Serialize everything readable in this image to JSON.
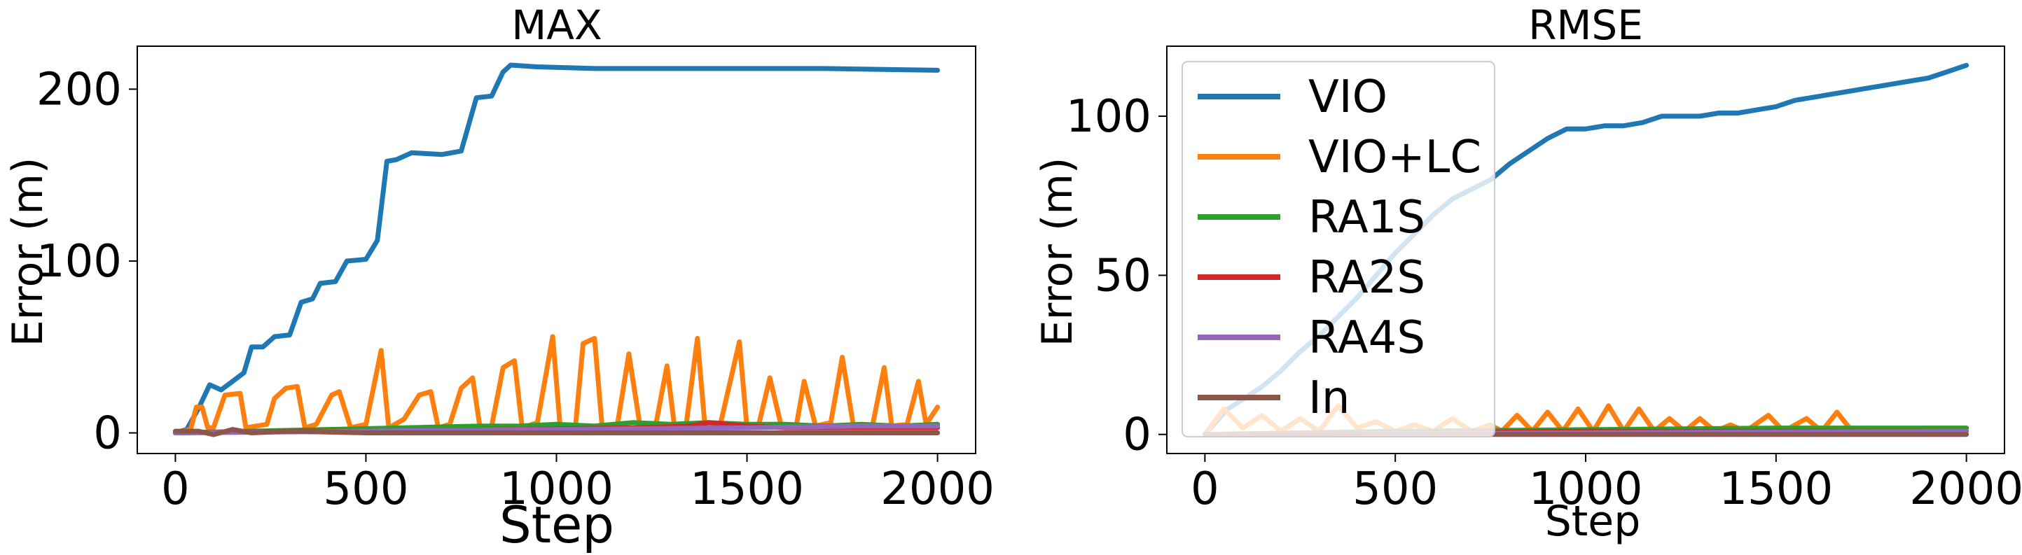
{
  "chart_data": [
    {
      "type": "line",
      "title": "MAX",
      "xlabel": "Step",
      "ylabel": "Error (m)",
      "xlim": [
        -100,
        2100
      ],
      "ylim": [
        -12,
        225
      ],
      "xticks": [
        0,
        500,
        1000,
        1500,
        2000
      ],
      "yticks": [
        0,
        100,
        200
      ],
      "legend": false,
      "series": [
        {
          "name": "VIO",
          "color": "#1f77b4",
          "points": [
            [
              0,
              0
            ],
            [
              30,
              2
            ],
            [
              60,
              14
            ],
            [
              90,
              28
            ],
            [
              120,
              25
            ],
            [
              150,
              30
            ],
            [
              180,
              35
            ],
            [
              200,
              50
            ],
            [
              230,
              50
            ],
            [
              260,
              56
            ],
            [
              300,
              57
            ],
            [
              330,
              76
            ],
            [
              360,
              78
            ],
            [
              380,
              87
            ],
            [
              420,
              88
            ],
            [
              450,
              100
            ],
            [
              500,
              101
            ],
            [
              530,
              112
            ],
            [
              555,
              158
            ],
            [
              580,
              159
            ],
            [
              620,
              163
            ],
            [
              700,
              162
            ],
            [
              750,
              164
            ],
            [
              790,
              195
            ],
            [
              830,
              196
            ],
            [
              860,
              210
            ],
            [
              880,
              214
            ],
            [
              950,
              213
            ],
            [
              1100,
              212
            ],
            [
              1300,
              212
            ],
            [
              1500,
              212
            ],
            [
              1700,
              212
            ],
            [
              2000,
              211
            ]
          ]
        },
        {
          "name": "VIO+LC",
          "color": "#ff7f0e",
          "points": [
            [
              0,
              0
            ],
            [
              40,
              2
            ],
            [
              55,
              15
            ],
            [
              70,
              15
            ],
            [
              85,
              3
            ],
            [
              100,
              3
            ],
            [
              130,
              22
            ],
            [
              170,
              23
            ],
            [
              185,
              3
            ],
            [
              240,
              5
            ],
            [
              260,
              20
            ],
            [
              290,
              26
            ],
            [
              320,
              27
            ],
            [
              340,
              3
            ],
            [
              370,
              5
            ],
            [
              410,
              22
            ],
            [
              430,
              24
            ],
            [
              460,
              3
            ],
            [
              500,
              5
            ],
            [
              540,
              48
            ],
            [
              560,
              3
            ],
            [
              600,
              8
            ],
            [
              640,
              22
            ],
            [
              670,
              24
            ],
            [
              690,
              3
            ],
            [
              720,
              5
            ],
            [
              750,
              26
            ],
            [
              780,
              32
            ],
            [
              800,
              2
            ],
            [
              830,
              4
            ],
            [
              860,
              38
            ],
            [
              890,
              42
            ],
            [
              910,
              3
            ],
            [
              950,
              6
            ],
            [
              990,
              56
            ],
            [
              1010,
              3
            ],
            [
              1050,
              4
            ],
            [
              1070,
              52
            ],
            [
              1100,
              55
            ],
            [
              1120,
              3
            ],
            [
              1160,
              5
            ],
            [
              1190,
              46
            ],
            [
              1220,
              3
            ],
            [
              1260,
              4
            ],
            [
              1290,
              39
            ],
            [
              1310,
              3
            ],
            [
              1340,
              4
            ],
            [
              1370,
              55
            ],
            [
              1390,
              3
            ],
            [
              1430,
              5
            ],
            [
              1480,
              53
            ],
            [
              1500,
              3
            ],
            [
              1530,
              4
            ],
            [
              1560,
              32
            ],
            [
              1590,
              4
            ],
            [
              1630,
              5
            ],
            [
              1650,
              30
            ],
            [
              1680,
              4
            ],
            [
              1720,
              6
            ],
            [
              1750,
              44
            ],
            [
              1780,
              3
            ],
            [
              1830,
              5
            ],
            [
              1860,
              38
            ],
            [
              1880,
              4
            ],
            [
              1920,
              5
            ],
            [
              1950,
              30
            ],
            [
              1970,
              5
            ],
            [
              2000,
              15
            ]
          ]
        },
        {
          "name": "RA1S",
          "color": "#2ca02c",
          "points": [
            [
              0,
              0
            ],
            [
              200,
              1
            ],
            [
              400,
              2
            ],
            [
              600,
              3
            ],
            [
              800,
              4
            ],
            [
              900,
              4
            ],
            [
              1000,
              5
            ],
            [
              1100,
              4
            ],
            [
              1200,
              6
            ],
            [
              1300,
              5
            ],
            [
              1400,
              6
            ],
            [
              1500,
              5
            ],
            [
              1600,
              5
            ],
            [
              1700,
              4
            ],
            [
              1800,
              5
            ],
            [
              1900,
              4
            ],
            [
              2000,
              5
            ]
          ]
        },
        {
          "name": "RA2S",
          "color": "#d62728",
          "points": [
            [
              0,
              0
            ],
            [
              300,
              1
            ],
            [
              600,
              1
            ],
            [
              900,
              2
            ],
            [
              1200,
              3
            ],
            [
              1350,
              4
            ],
            [
              1400,
              6
            ],
            [
              1500,
              4
            ],
            [
              1600,
              3
            ],
            [
              1800,
              3
            ],
            [
              2000,
              3
            ]
          ]
        },
        {
          "name": "RA4S",
          "color": "#9467bd",
          "points": [
            [
              0,
              0
            ],
            [
              500,
              1
            ],
            [
              1000,
              2
            ],
            [
              1500,
              3
            ],
            [
              1800,
              4
            ],
            [
              2000,
              4
            ]
          ]
        },
        {
          "name": "In",
          "color": "#8c564b",
          "points": [
            [
              0,
              1
            ],
            [
              60,
              1
            ],
            [
              100,
              -1
            ],
            [
              150,
              2
            ],
            [
              200,
              0
            ],
            [
              300,
              1
            ],
            [
              500,
              0
            ],
            [
              800,
              0
            ],
            [
              1200,
              0
            ],
            [
              1600,
              0
            ],
            [
              2000,
              0
            ]
          ]
        }
      ]
    },
    {
      "type": "line",
      "title": "RMSE",
      "xlabel": "Step",
      "ylabel": "Error (m)",
      "xlim": [
        -100,
        2100
      ],
      "ylim": [
        -6,
        122
      ],
      "xticks": [
        0,
        500,
        1000,
        1500,
        2000
      ],
      "yticks": [
        0,
        50,
        100
      ],
      "legend": "upper left",
      "series": [
        {
          "name": "VIO",
          "color": "#1f77b4",
          "points": [
            [
              0,
              0
            ],
            [
              60,
              8
            ],
            [
              100,
              11
            ],
            [
              150,
              15
            ],
            [
              200,
              20
            ],
            [
              250,
              26
            ],
            [
              300,
              31
            ],
            [
              350,
              37
            ],
            [
              400,
              43
            ],
            [
              450,
              50
            ],
            [
              500,
              57
            ],
            [
              550,
              63
            ],
            [
              600,
              69
            ],
            [
              650,
              74
            ],
            [
              700,
              77
            ],
            [
              750,
              80
            ],
            [
              800,
              85
            ],
            [
              850,
              89
            ],
            [
              900,
              93
            ],
            [
              950,
              96
            ],
            [
              1000,
              96
            ],
            [
              1050,
              97
            ],
            [
              1100,
              97
            ],
            [
              1150,
              98
            ],
            [
              1200,
              100
            ],
            [
              1250,
              100
            ],
            [
              1300,
              100
            ],
            [
              1350,
              101
            ],
            [
              1400,
              101
            ],
            [
              1450,
              102
            ],
            [
              1500,
              103
            ],
            [
              1550,
              105
            ],
            [
              1600,
              106
            ],
            [
              1650,
              107
            ],
            [
              1700,
              108
            ],
            [
              1750,
              109
            ],
            [
              1800,
              110
            ],
            [
              1850,
              111
            ],
            [
              1900,
              112
            ],
            [
              1950,
              114
            ],
            [
              2000,
              116
            ]
          ]
        },
        {
          "name": "VIO+LC",
          "color": "#ff7f0e",
          "points": [
            [
              0,
              0
            ],
            [
              50,
              8
            ],
            [
              100,
              2
            ],
            [
              150,
              6
            ],
            [
              200,
              1
            ],
            [
              250,
              5
            ],
            [
              300,
              1
            ],
            [
              350,
              9
            ],
            [
              400,
              2
            ],
            [
              450,
              4
            ],
            [
              500,
              1
            ],
            [
              550,
              3
            ],
            [
              600,
              1
            ],
            [
              650,
              5
            ],
            [
              700,
              1
            ],
            [
              750,
              3
            ],
            [
              780,
              1
            ],
            [
              820,
              6
            ],
            [
              860,
              1
            ],
            [
              900,
              7
            ],
            [
              940,
              1
            ],
            [
              980,
              8
            ],
            [
              1020,
              1
            ],
            [
              1060,
              9
            ],
            [
              1100,
              1
            ],
            [
              1140,
              8
            ],
            [
              1180,
              1
            ],
            [
              1220,
              5
            ],
            [
              1260,
              1
            ],
            [
              1300,
              5
            ],
            [
              1340,
              1
            ],
            [
              1380,
              3
            ],
            [
              1420,
              1
            ],
            [
              1480,
              6
            ],
            [
              1520,
              1
            ],
            [
              1580,
              5
            ],
            [
              1620,
              1
            ],
            [
              1660,
              7
            ],
            [
              1700,
              1
            ],
            [
              1740,
              2
            ],
            [
              1800,
              1
            ],
            [
              1900,
              2
            ],
            [
              2000,
              2
            ]
          ]
        },
        {
          "name": "RA1S",
          "color": "#2ca02c",
          "points": [
            [
              0,
              0
            ],
            [
              500,
              1
            ],
            [
              1000,
              1.5
            ],
            [
              1500,
              2
            ],
            [
              2000,
              2
            ]
          ]
        },
        {
          "name": "RA2S",
          "color": "#d62728",
          "points": [
            [
              0,
              0
            ],
            [
              500,
              0.5
            ],
            [
              1000,
              1
            ],
            [
              1500,
              1
            ],
            [
              2000,
              1
            ]
          ]
        },
        {
          "name": "RA4S",
          "color": "#9467bd",
          "points": [
            [
              0,
              0
            ],
            [
              1000,
              0.5
            ],
            [
              2000,
              1
            ]
          ]
        },
        {
          "name": "In",
          "color": "#8c564b",
          "points": [
            [
              0,
              0
            ],
            [
              500,
              0
            ],
            [
              1000,
              0
            ],
            [
              1500,
              0
            ],
            [
              2000,
              0
            ]
          ]
        }
      ]
    }
  ]
}
